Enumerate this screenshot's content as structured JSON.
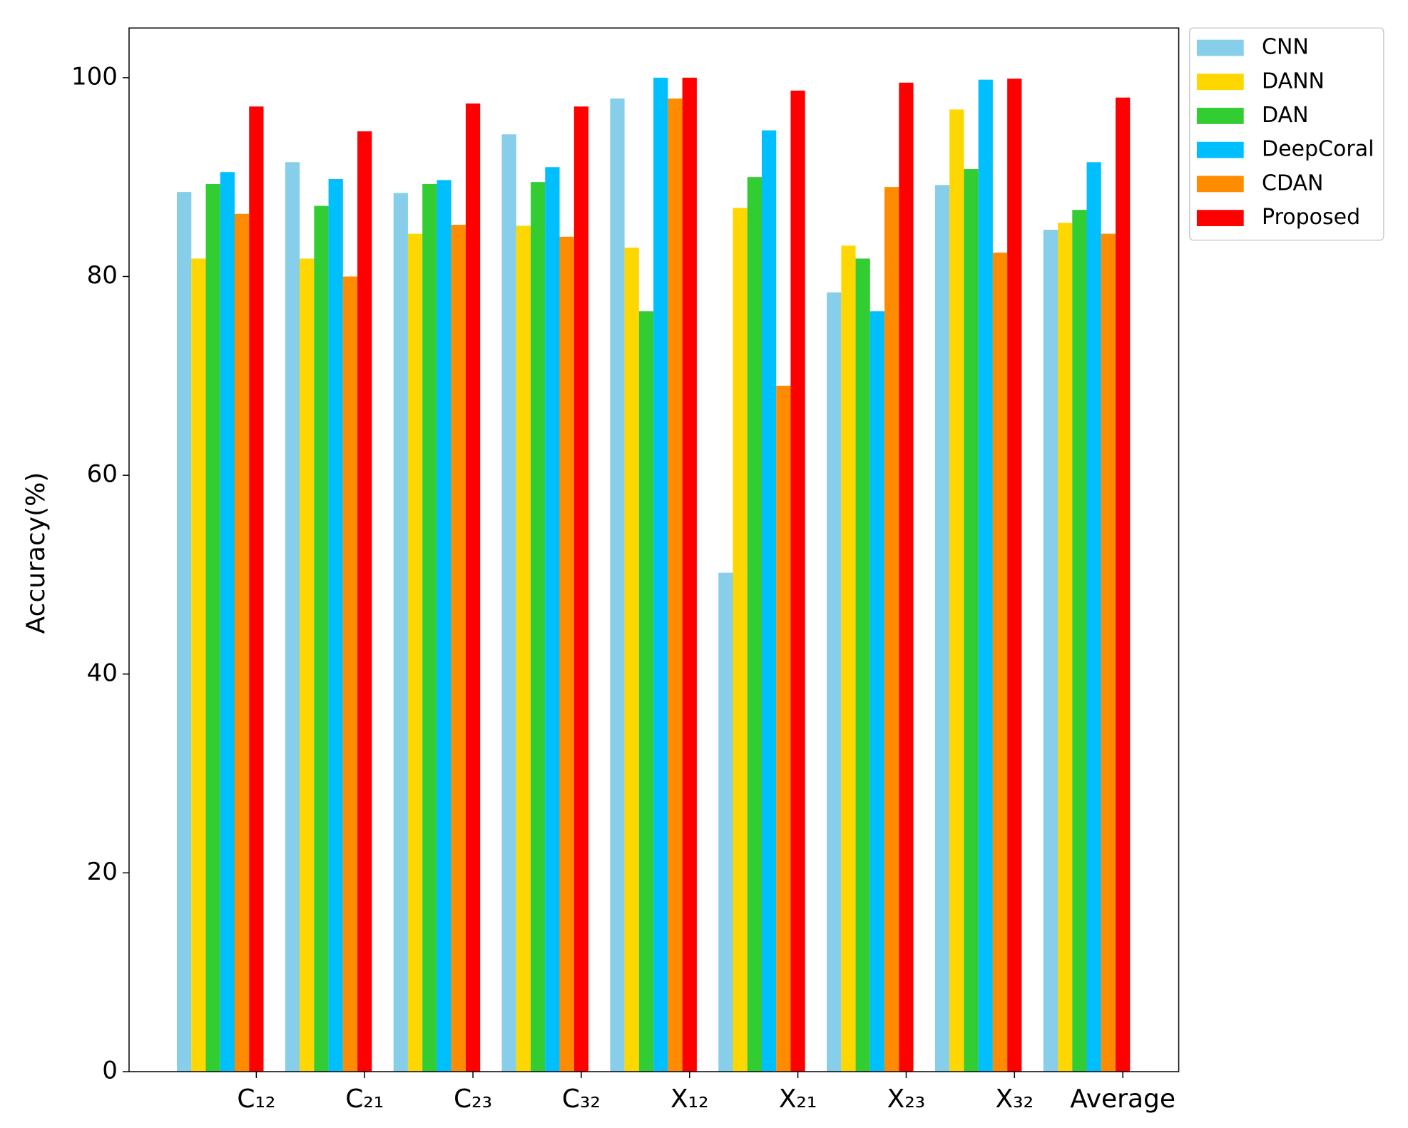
{
  "chart_data": {
    "type": "bar",
    "y_label": "Accuracy(%)",
    "categories": [
      "C₁₂",
      "C₂₁",
      "C₂₃",
      "C₃₂",
      "X₁₂",
      "X₂₁",
      "X₂₃",
      "X₃₂",
      "Average"
    ],
    "series": [
      {
        "name": "CNN",
        "color": "#87ceeb",
        "values": [
          88.5,
          91.5,
          88.4,
          94.3,
          97.9,
          50.2,
          78.4,
          89.2,
          84.7
        ]
      },
      {
        "name": "DANN",
        "color": "#ffd700",
        "values": [
          81.8,
          81.8,
          84.3,
          85.1,
          82.9,
          86.9,
          83.1,
          96.8,
          85.4
        ]
      },
      {
        "name": "DAN",
        "color": "#32cd32",
        "values": [
          89.3,
          87.1,
          89.3,
          89.5,
          76.5,
          90.0,
          81.8,
          90.8,
          86.7
        ]
      },
      {
        "name": "DeepCoral",
        "color": "#00bfff",
        "values": [
          90.5,
          89.8,
          89.7,
          91.0,
          100,
          94.7,
          76.5,
          99.8,
          91.5
        ]
      },
      {
        "name": "CDAN",
        "color": "#ff8c00",
        "values": [
          86.3,
          80.0,
          85.2,
          84.0,
          97.9,
          69.0,
          89.0,
          82.4,
          84.3
        ]
      },
      {
        "name": "Proposed",
        "color": "#ff0000",
        "values": [
          97.1,
          94.6,
          97.4,
          97.1,
          100,
          98.7,
          99.5,
          99.9,
          98.0
        ]
      }
    ],
    "ylim": [
      0,
      105
    ],
    "yticks": [
      0,
      20,
      40,
      60,
      80,
      100
    ],
    "grid": false,
    "legend": "outside-upper-right"
  }
}
